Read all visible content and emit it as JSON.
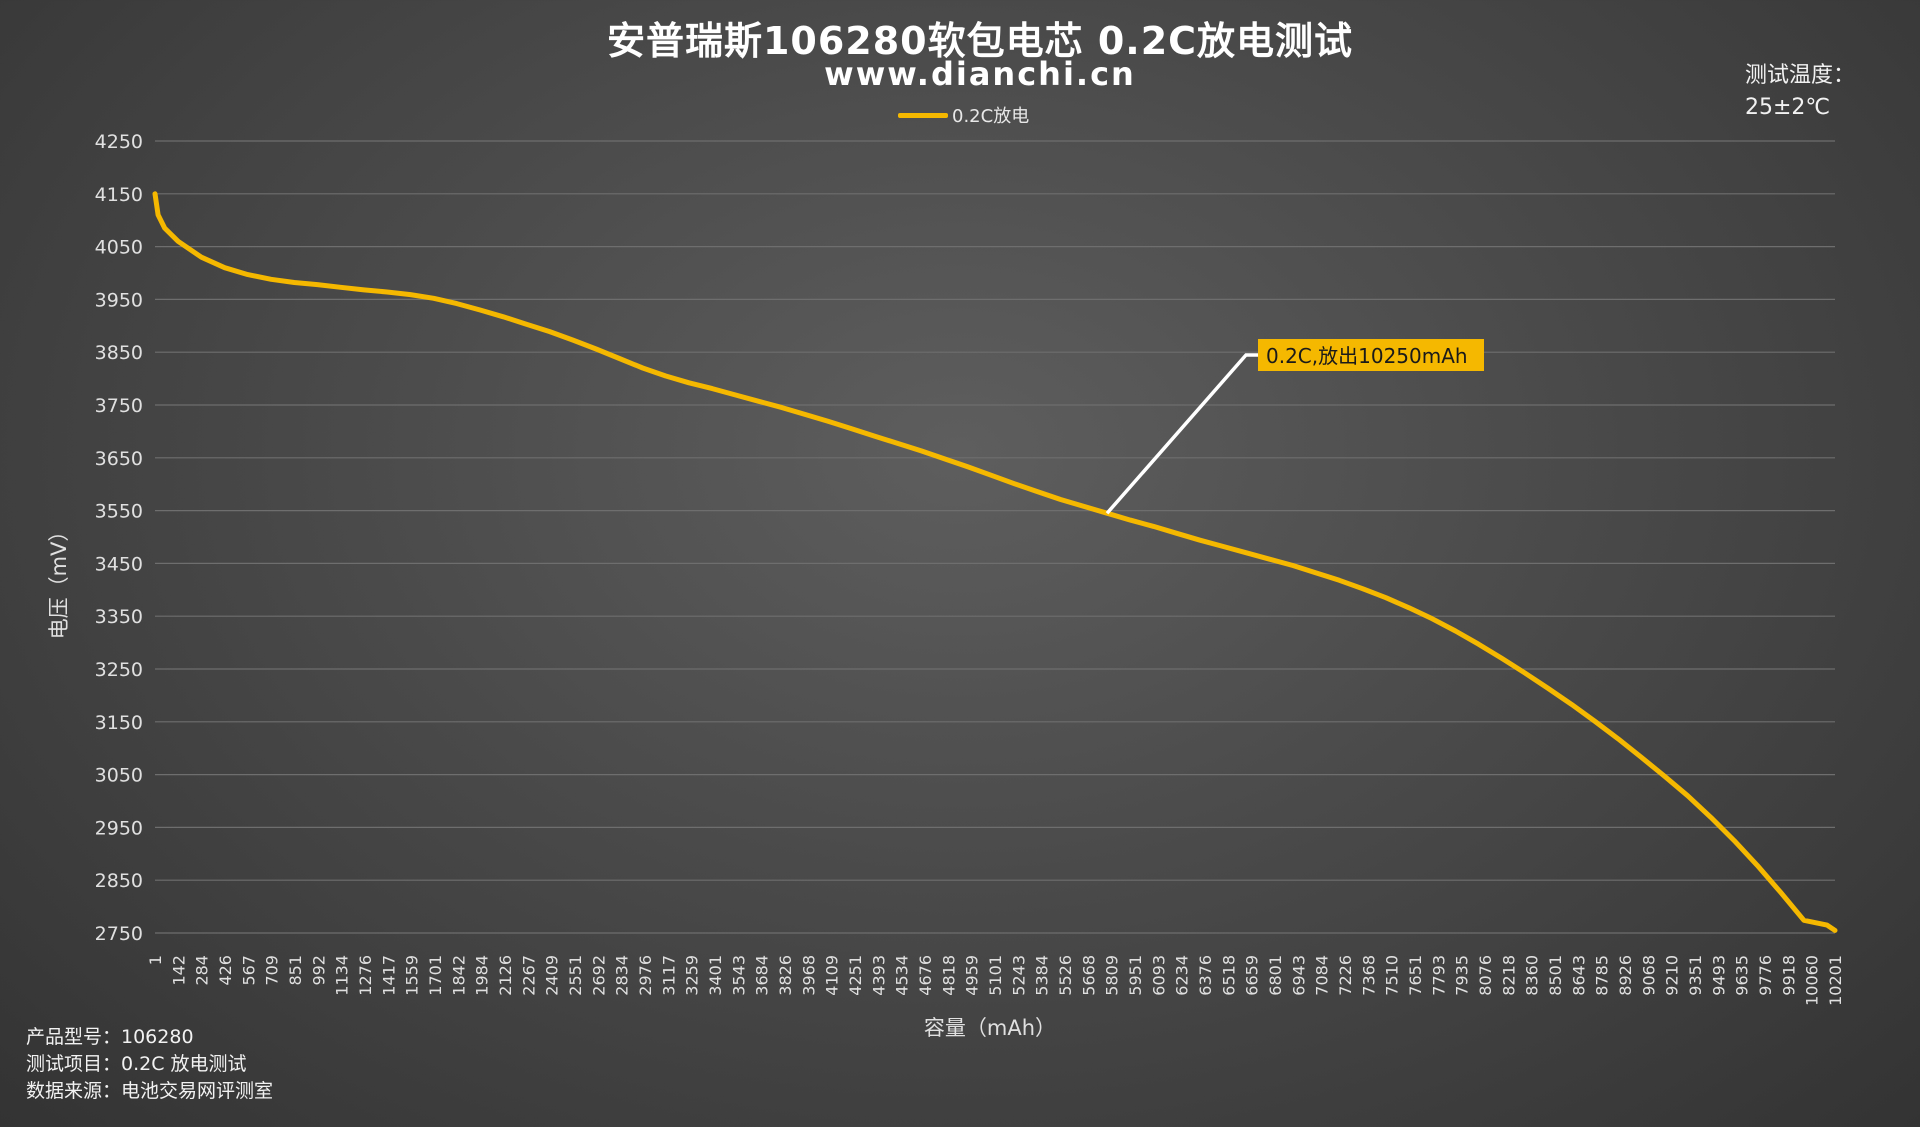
{
  "header": {
    "title": "安普瑞斯106280软包电芯 0.2C放电测试",
    "subtitle": "www.dianchi.cn",
    "temperature_label": "测试温度：",
    "temperature_value": "25±2℃"
  },
  "footer": {
    "model": "产品型号：106280",
    "test_item": "测试项目：0.2C 放电测试",
    "source": "数据来源：电池交易网评测室"
  },
  "colors": {
    "line": "#f5b800",
    "annotation_bg": "#f5b800",
    "annotation_leader": "#ffffff",
    "grid": "#6e6e6e"
  },
  "chart_data": {
    "type": "line",
    "title": "安普瑞斯106280软包电芯 0.2C放电测试",
    "xlabel": "容量（mAh）",
    "ylabel": "电压（mV）",
    "ylim": [
      2750,
      4250
    ],
    "yticks": [
      2750,
      2850,
      2950,
      3050,
      3150,
      3250,
      3350,
      3450,
      3550,
      3650,
      3750,
      3850,
      3950,
      4050,
      4150,
      4250
    ],
    "xlim": [
      1,
      10250
    ],
    "xtick_labels": [
      "1",
      "142",
      "284",
      "426",
      "567",
      "709",
      "851",
      "992",
      "1134",
      "1276",
      "1417",
      "1559",
      "1701",
      "1842",
      "1984",
      "2126",
      "2267",
      "2409",
      "2551",
      "2692",
      "2834",
      "2976",
      "3117",
      "3259",
      "3401",
      "3543",
      "3684",
      "3826",
      "3968",
      "4109",
      "4251",
      "4393",
      "4534",
      "4676",
      "4818",
      "4959",
      "5101",
      "5243",
      "5384",
      "5526",
      "5668",
      "5809",
      "5951",
      "6093",
      "6234",
      "6376",
      "6518",
      "6659",
      "6801",
      "6943",
      "7084",
      "7226",
      "7368",
      "7510",
      "7651",
      "7793",
      "7935",
      "8076",
      "8218",
      "8360",
      "8501",
      "8643",
      "8785",
      "8926",
      "9068",
      "9210",
      "9351",
      "9493",
      "9635",
      "9776",
      "9918",
      "10060",
      "10201"
    ],
    "grid": true,
    "legend_position": "top-center",
    "series": [
      {
        "name": "0.2C放电",
        "x": [
          1,
          20,
          60,
          142,
          284,
          426,
          567,
          709,
          851,
          992,
          1134,
          1276,
          1417,
          1559,
          1701,
          1842,
          1984,
          2126,
          2267,
          2409,
          2551,
          2692,
          2834,
          2976,
          3117,
          3259,
          3401,
          3543,
          3684,
          3826,
          3968,
          4109,
          4251,
          4393,
          4534,
          4676,
          4818,
          4959,
          5101,
          5243,
          5384,
          5526,
          5668,
          5809,
          5951,
          6093,
          6234,
          6376,
          6518,
          6659,
          6801,
          6943,
          7084,
          7226,
          7368,
          7510,
          7651,
          7793,
          7935,
          8076,
          8218,
          8360,
          8501,
          8643,
          8785,
          8926,
          9068,
          9210,
          9351,
          9493,
          9635,
          9776,
          9918,
          10060,
          10201,
          10250
        ],
        "y": [
          4150,
          4110,
          4085,
          4060,
          4030,
          4010,
          3997,
          3988,
          3982,
          3978,
          3973,
          3968,
          3964,
          3959,
          3952,
          3942,
          3930,
          3917,
          3903,
          3889,
          3873,
          3856,
          3838,
          3820,
          3805,
          3792,
          3781,
          3769,
          3757,
          3745,
          3732,
          3719,
          3705,
          3691,
          3677,
          3663,
          3648,
          3633,
          3617,
          3601,
          3586,
          3571,
          3558,
          3545,
          3532,
          3520,
          3507,
          3494,
          3482,
          3470,
          3458,
          3446,
          3432,
          3418,
          3402,
          3385,
          3366,
          3345,
          3322,
          3297,
          3270,
          3242,
          3213,
          3183,
          3151,
          3118,
          3083,
          3047,
          3010,
          2969,
          2925,
          2878,
          2827,
          2774,
          2765,
          2755
        ]
      }
    ],
    "annotation": {
      "text": "0.2C,放出10250mAh",
      "x": 5809,
      "y": 3545
    }
  }
}
